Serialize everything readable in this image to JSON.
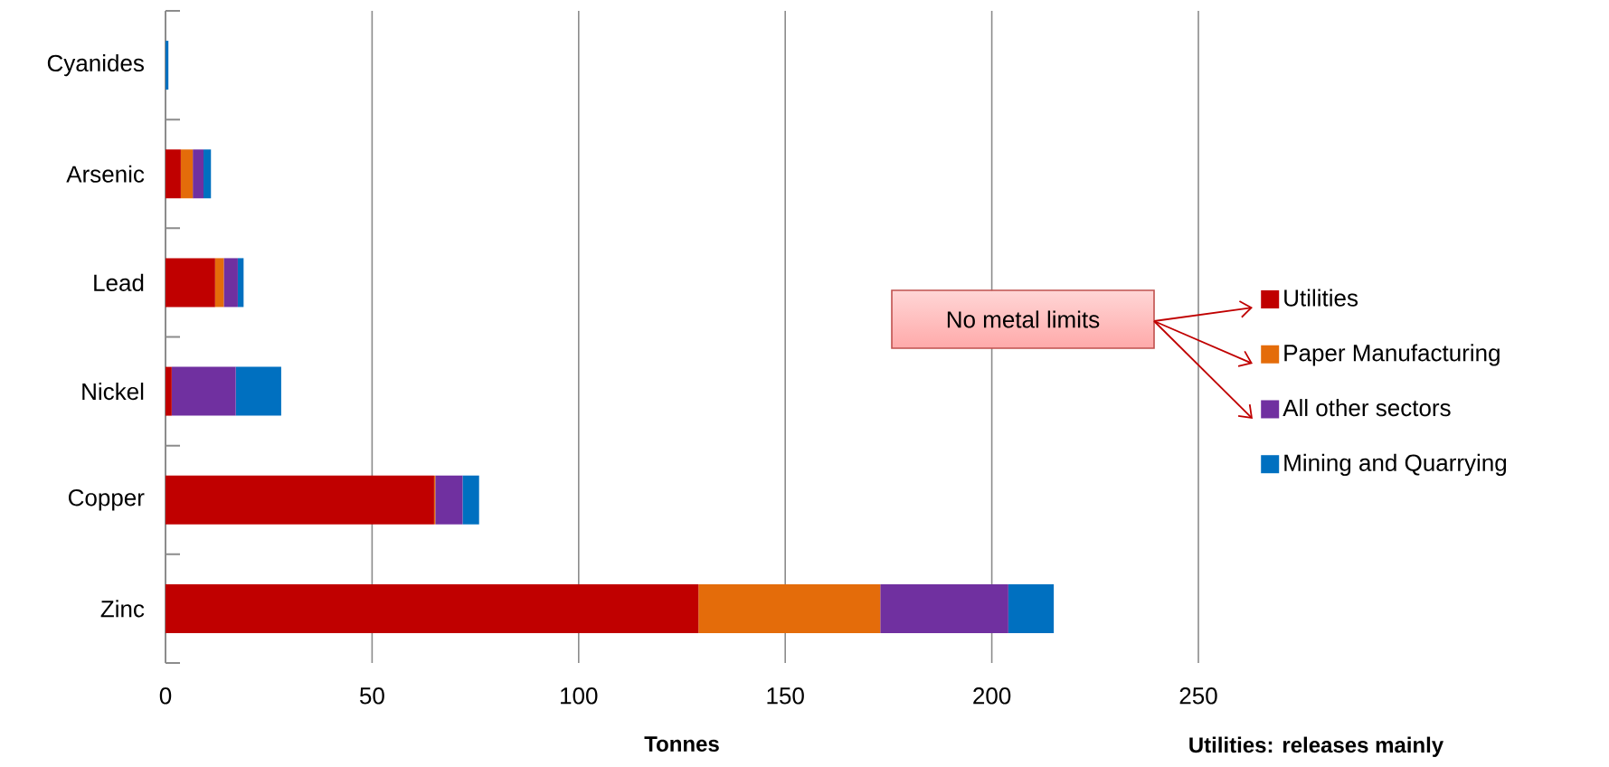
{
  "chart_data": {
    "type": "bar",
    "orientation": "horizontal",
    "stacked": true,
    "xlabel": "Tonnes",
    "categories": [
      "Cyanides",
      "Arsenic",
      "Lead",
      "Nickel",
      "Copper",
      "Zinc"
    ],
    "series": [
      {
        "name": "Utilities",
        "color": "#c00000",
        "values": [
          0,
          3.7,
          12.0,
          1.5,
          65.0,
          129
        ]
      },
      {
        "name": "Paper Manufacturing",
        "color": "#e46c0a",
        "values": [
          0,
          2.9,
          2.1,
          0,
          0.3,
          44
        ]
      },
      {
        "name": "All other sectors",
        "color": "#7030a0",
        "values": [
          0,
          2.6,
          3.4,
          15.5,
          6.6,
          31
        ]
      },
      {
        "name": "Mining and Quarrying",
        "color": "#0070c0",
        "values": [
          0.7,
          1.8,
          1.4,
          11.0,
          4.0,
          11
        ]
      }
    ],
    "xlim": [
      0,
      250
    ],
    "xticks": [
      0,
      50,
      100,
      150,
      200,
      250
    ],
    "grid": "x",
    "legend": "right",
    "annotations": [
      "No metal  limits",
      "Utilities: releases mainly"
    ]
  }
}
